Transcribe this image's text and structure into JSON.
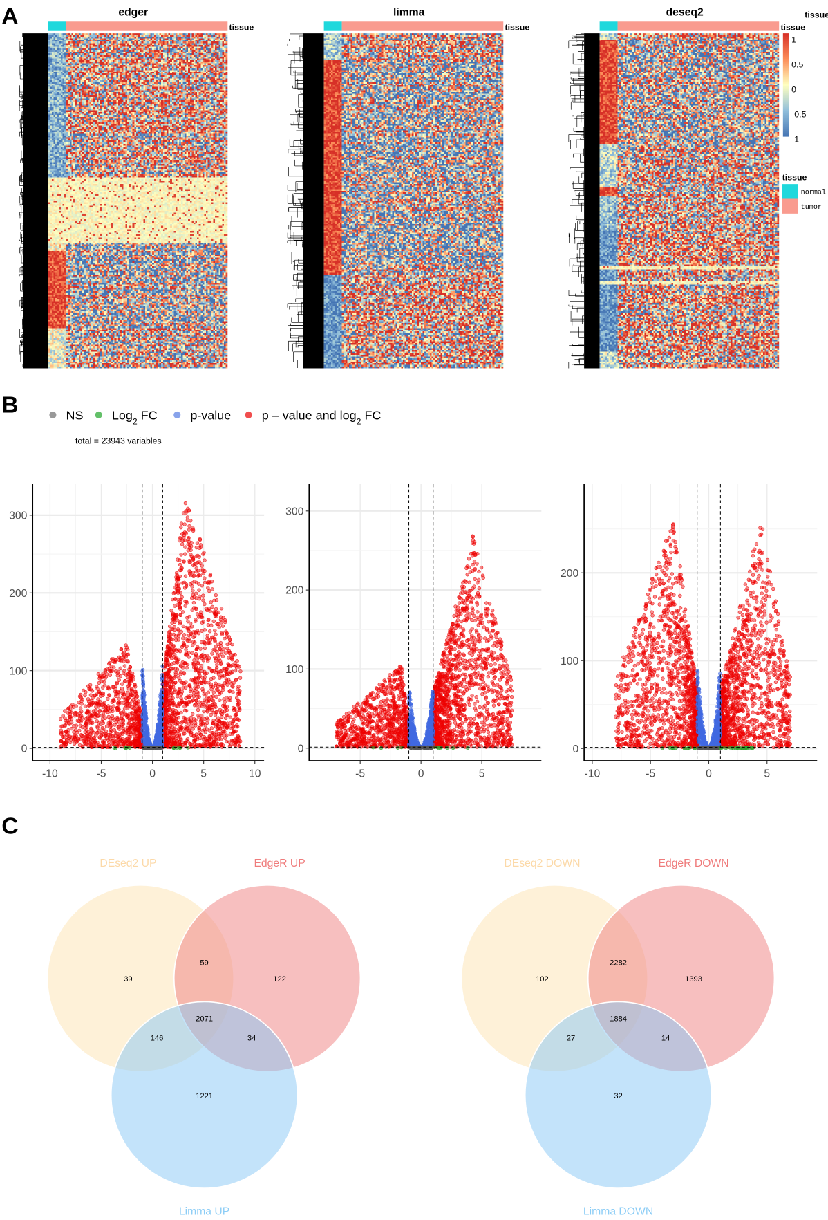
{
  "panels": {
    "a": "A",
    "b": "B",
    "c": "C"
  },
  "chart_data": [
    {
      "type": "heatmap",
      "panel": "A",
      "color_scale": {
        "values": [
          -1,
          -0.5,
          0,
          0.5,
          1
        ],
        "colors": [
          "#4575b4",
          "#91bfdb",
          "#ffffbf",
          "#fc8d59",
          "#d73027"
        ],
        "labels": [
          "1",
          "0.5",
          "0",
          "-0.5",
          "-1"
        ],
        "title": "tissue"
      },
      "annotation": {
        "label": "tissue",
        "legend_title": "tissue",
        "groups": [
          {
            "name": "normal",
            "color": "#1fd8dc"
          },
          {
            "name": "tumor",
            "color": "#f99b8f"
          }
        ]
      },
      "rows": 200,
      "columns": 100,
      "normal_columns": 10,
      "heatmaps": [
        {
          "title": "edger",
          "seed": 11,
          "normal_blocks": [
            {
              "from": 0,
              "to": 90,
              "level": -0.6
            },
            {
              "from": 90,
              "to": 130,
              "level": 0.1
            },
            {
              "from": 130,
              "to": 176,
              "level": 0.85
            },
            {
              "from": 176,
              "to": 200,
              "level": -0.1
            }
          ],
          "light_bands": [
            {
              "from": 86,
              "to": 125
            }
          ]
        },
        {
          "title": "limma",
          "seed": 22,
          "normal_blocks": [
            {
              "from": 0,
              "to": 16,
              "level": -0.4
            },
            {
              "from": 16,
              "to": 144,
              "level": 0.9
            },
            {
              "from": 144,
              "to": 200,
              "level": -0.8
            }
          ],
          "light_bands": []
        },
        {
          "title": "deseq2",
          "seed": 33,
          "normal_blocks": [
            {
              "from": 0,
              "to": 4,
              "level": -0.3
            },
            {
              "from": 4,
              "to": 66,
              "level": 0.9
            },
            {
              "from": 66,
              "to": 92,
              "level": -0.3
            },
            {
              "from": 92,
              "to": 97,
              "level": 0.9
            },
            {
              "from": 97,
              "to": 118,
              "level": -0.5
            },
            {
              "from": 118,
              "to": 190,
              "level": -0.8
            },
            {
              "from": 190,
              "to": 200,
              "level": -0.3
            }
          ],
          "light_bands": [
            {
              "from": 139,
              "to": 141
            },
            {
              "from": 148,
              "to": 150
            }
          ]
        }
      ]
    },
    {
      "type": "scatter",
      "panel": "B",
      "legend": [
        {
          "parts": [
            "NS"
          ],
          "color": "#808080"
        },
        {
          "parts": [
            "Log",
            "2",
            " FC"
          ],
          "color": "#3cb043"
        },
        {
          "parts": [
            "p-value"
          ],
          "color": "#6a8ce6"
        },
        {
          "parts": [
            "p – value and log",
            "2",
            " FC"
          ],
          "color": "#ee2222"
        }
      ],
      "caption": "total = 23943 variables",
      "fc_cutoff": 1,
      "p_cutoff_log10": 1.3,
      "plots": [
        {
          "method": "edger",
          "xlim": [
            -11.7,
            10.9
          ],
          "ylim": [
            -16,
            340
          ],
          "xticks": [
            -10,
            -5,
            0,
            5,
            10
          ],
          "yticks": [
            0,
            100,
            200,
            300
          ],
          "sides": [
            {
              "from": -1,
              "to": -9,
              "peak_x": -2.5,
              "y_peak": 135,
              "n": 900
            },
            {
              "from": 1,
              "to": 8.6,
              "peak_x": 3.2,
              "y_peak": 330,
              "n": 1500,
              "cap": 320
            }
          ],
          "blue_peak": 110,
          "seed": 5
        },
        {
          "method": "limma",
          "xlim": [
            -9.2,
            9.9
          ],
          "ylim": [
            -16,
            334
          ],
          "xticks": [
            -5,
            0,
            5
          ],
          "yticks": [
            0,
            100,
            200,
            300
          ],
          "sides": [
            {
              "from": -1,
              "to": -7,
              "peak_x": -1.6,
              "y_peak": 105,
              "n": 900
            },
            {
              "from": 1,
              "to": 7.5,
              "peak_x": 4.3,
              "y_peak": 270,
              "n": 1500
            }
          ],
          "blue_peak": 80,
          "seed": 6
        },
        {
          "method": "deseq2",
          "xlim": [
            -10.7,
            9.3
          ],
          "ylim": [
            -14,
            301
          ],
          "xticks": [
            -10,
            -5,
            0,
            5
          ],
          "yticks": [
            0,
            100,
            200
          ],
          "sides": [
            {
              "from": -1,
              "to": -8,
              "peak_x": -3,
              "y_peak": 260,
              "n": 1300
            },
            {
              "from": 1,
              "to": 7,
              "peak_x": 4.5,
              "y_peak": 265,
              "n": 1300
            }
          ],
          "blue_peak": 95,
          "seed": 7
        }
      ]
    },
    {
      "type": "venn",
      "panel": "C",
      "diagrams": [
        {
          "sets": [
            "DEseq2  UP",
            "EdgeR  UP",
            "Limma  UP"
          ],
          "regions": {
            "a_only": 39,
            "ab": 59,
            "b_only": 122,
            "abc": 2071,
            "ac": 146,
            "bc": 34,
            "c_only": 1221
          }
        },
        {
          "sets": [
            "DEseq2  DOWN",
            "EdgeR  DOWN",
            "Limma  DOWN"
          ],
          "regions": {
            "a_only": 102,
            "ab": 2282,
            "b_only": 1393,
            "abc": 1884,
            "ac": 27,
            "bc": 14,
            "c_only": 32
          }
        }
      ],
      "colors": {
        "a": "#fdebc8",
        "b": "#f08a8a",
        "c": "#87c8f5",
        "a_label": "#fcd9a8",
        "b_label": "#ef7b7b",
        "c_label": "#8ccdf6"
      }
    }
  ]
}
